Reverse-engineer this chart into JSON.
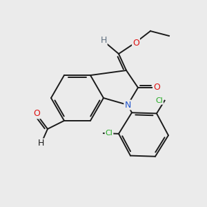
{
  "background_color": "#ebebeb",
  "bond_color": "#1a1a1a",
  "figsize": [
    3.0,
    3.0
  ],
  "dpi": 100,
  "colors": {
    "N": "#2255cc",
    "O": "#dd1111",
    "Cl": "#22aa22",
    "H_vinyl": "#607080",
    "C": "#1a1a1a"
  }
}
